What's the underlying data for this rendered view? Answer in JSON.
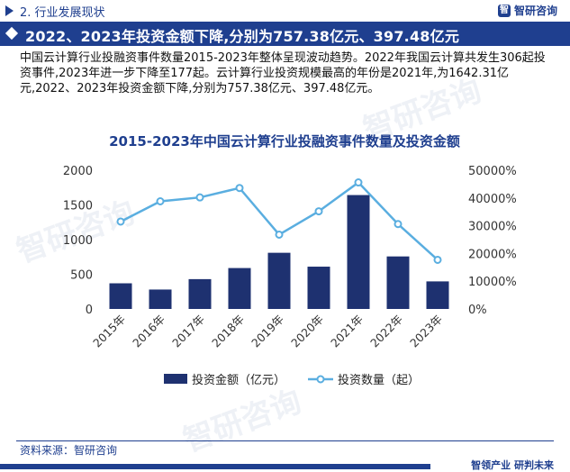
{
  "section_title": "2. 行业发展现状",
  "brand_name": "智研咨询",
  "header_title": "2022、2023年投资金额下降,分别为757.38亿元、397.48亿元",
  "summary": "中国云计算行业投融资事件数量2015-2023年整体呈现波动趋势。2022年我国云计算共发生306起投资事件,2023年进一步下降至177起。云计算行业投资规模最高的年份是2021年,为1642.31亿元,2022、2023年投资金额下降,分别为757.38亿元、397.48亿元。",
  "source": "资料来源：智研咨询",
  "slogan": "智领产业  研判未来",
  "colors": {
    "primary": "#1f3f8f",
    "bar": "#1e3170",
    "line": "#5aaee0"
  },
  "chart_data": {
    "type": "bar",
    "title": "2015-2023年中国云计算行业投融资事件数量及投资金额",
    "categories": [
      "2015年",
      "2016年",
      "2017年",
      "2018年",
      "2019年",
      "2020年",
      "2021年",
      "2022年",
      "2023年"
    ],
    "y_left": {
      "ylim": [
        0,
        2000
      ],
      "ticks": [
        "0",
        "500",
        "1000",
        "1500",
        "2000"
      ]
    },
    "y_right": {
      "ylim": [
        0,
        50000
      ],
      "ticks": [
        "0%",
        "10000%",
        "20000%",
        "30000%",
        "40000%",
        "50000%"
      ]
    },
    "series": [
      {
        "name": "投资金额（亿元）",
        "type": "bar",
        "axis": "left",
        "values": [
          370,
          280,
          430,
          590,
          810,
          610,
          1642.31,
          757.38,
          397.48
        ]
      },
      {
        "name": "投资数量（起）",
        "type": "line",
        "axis": "right",
        "values": [
          31500,
          38800,
          40200,
          43600,
          26800,
          35200,
          45600,
          30600,
          17700
        ]
      }
    ],
    "legend_position": "bottom",
    "grid": false
  }
}
